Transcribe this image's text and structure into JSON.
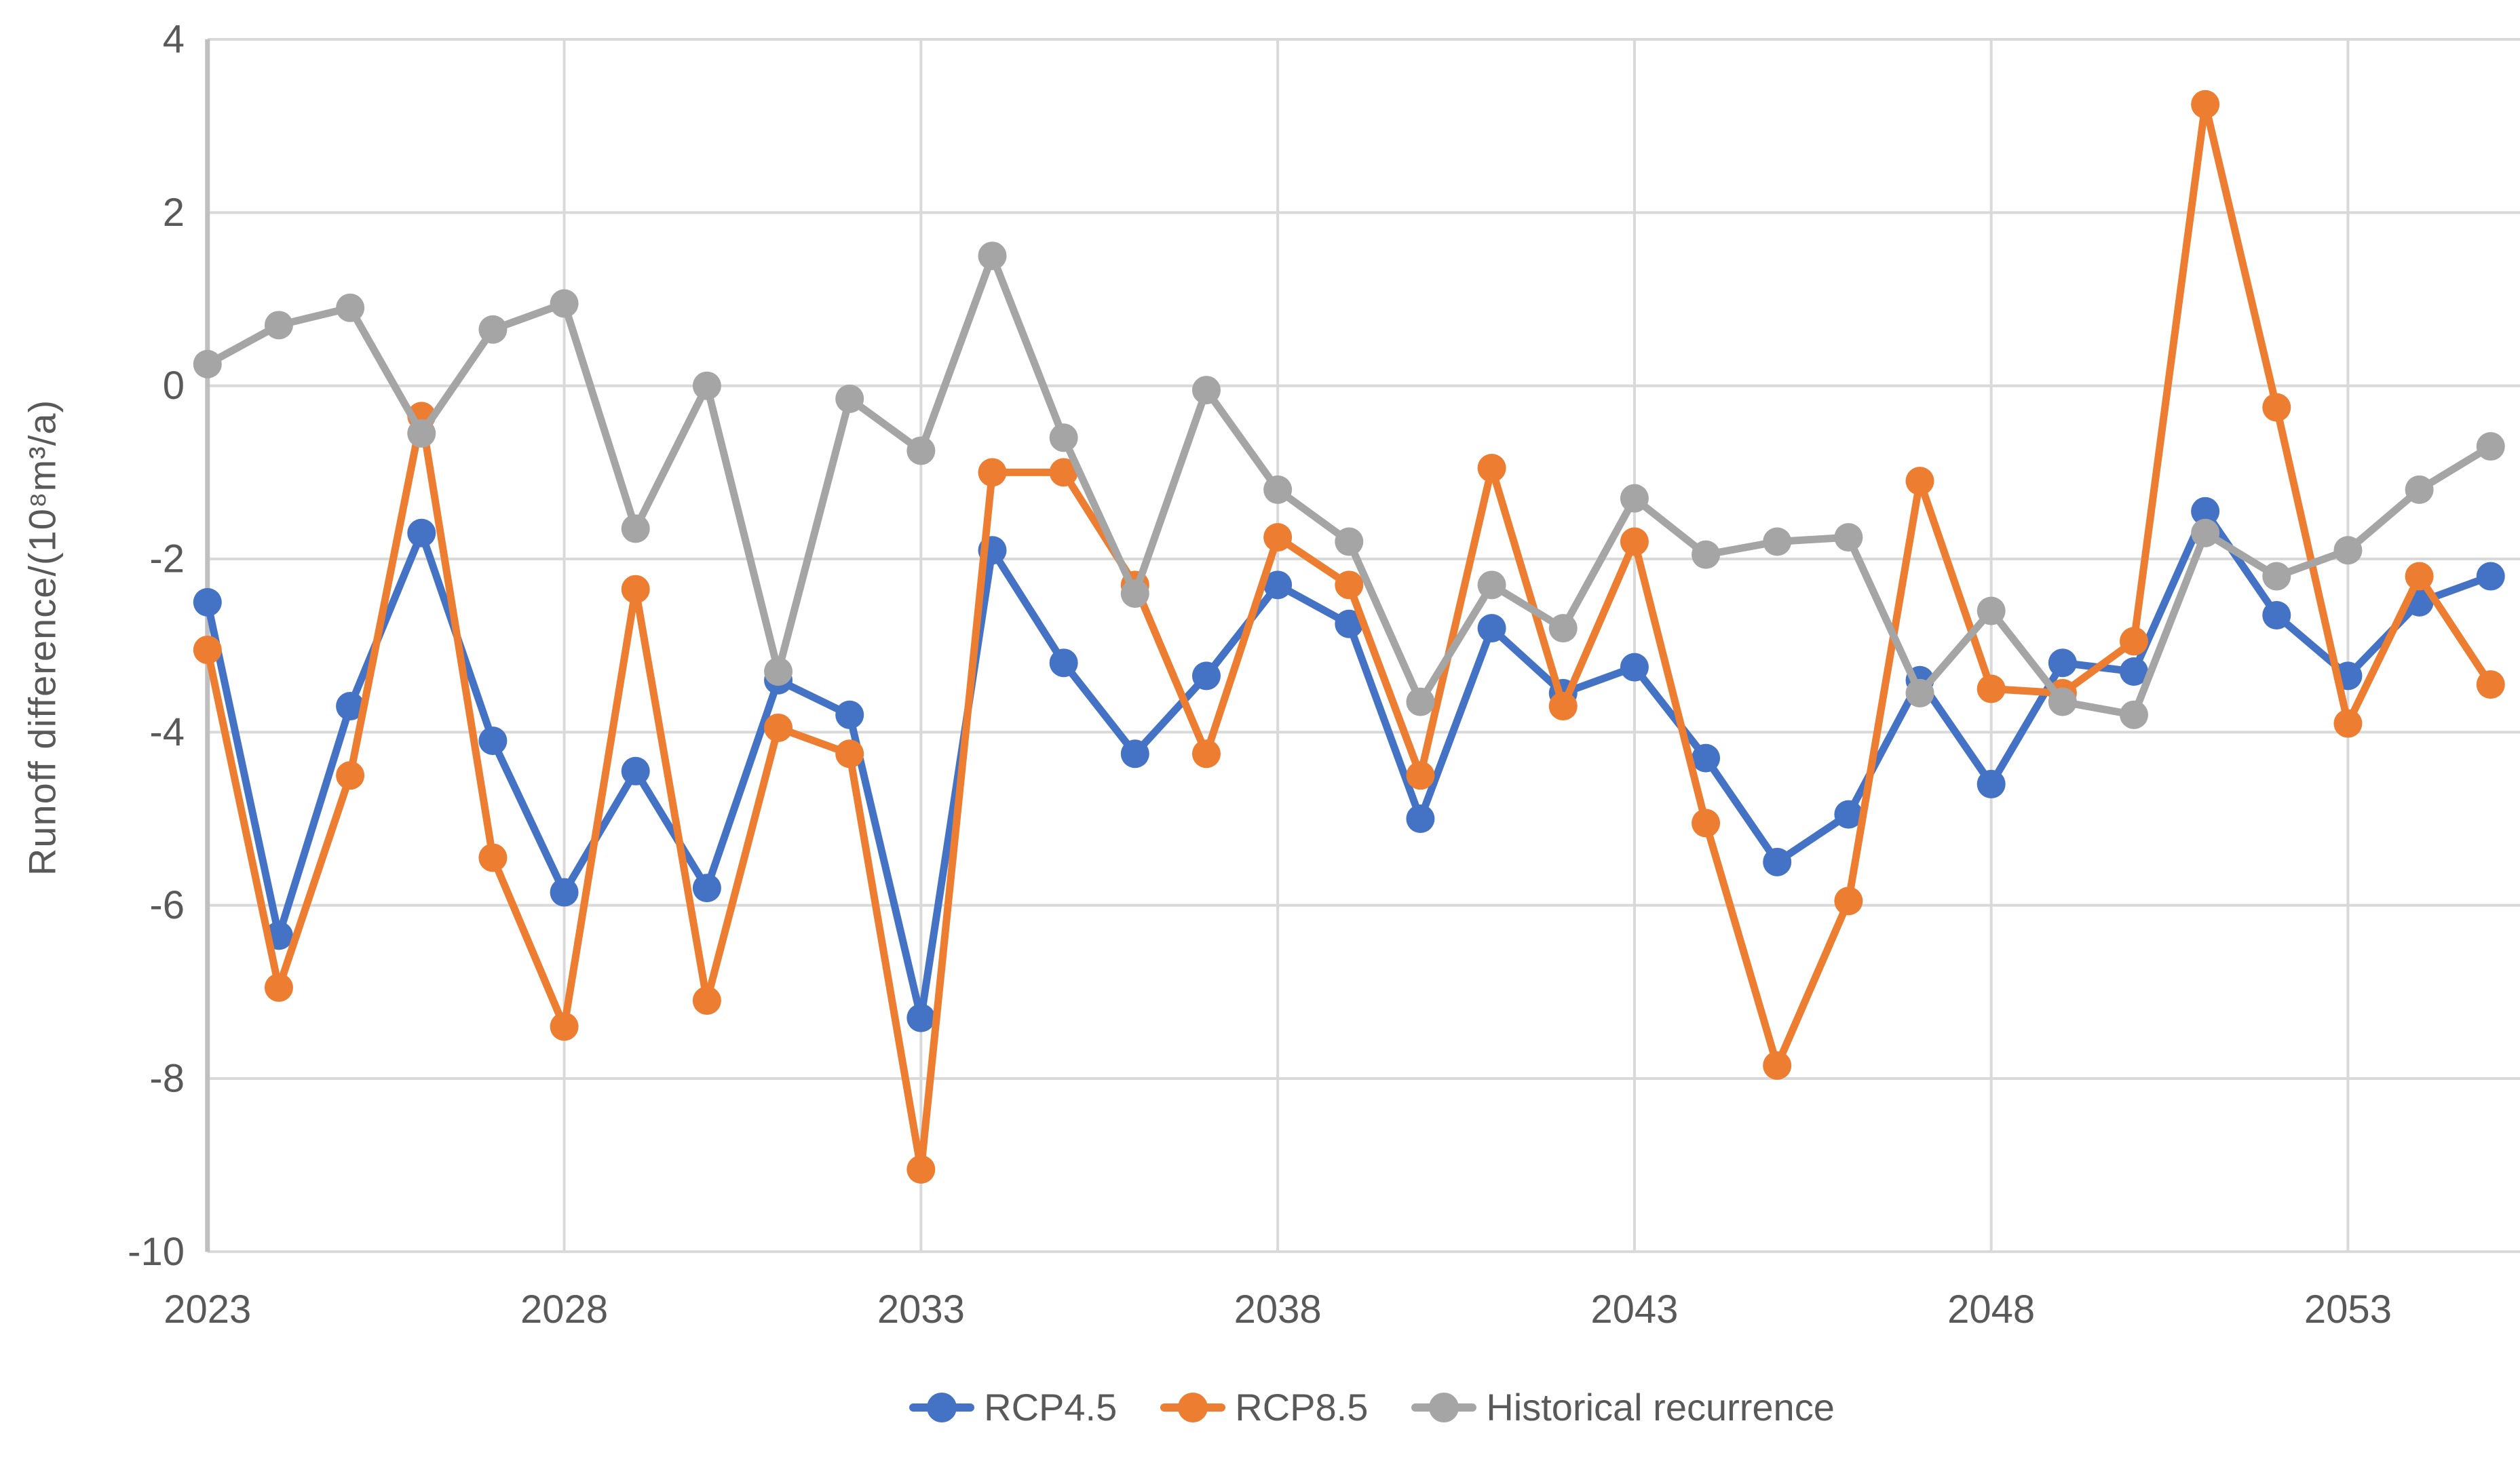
{
  "chart_data": {
    "type": "line",
    "title": "",
    "xlabel": "",
    "ylabel": "Runoff difference/(10⁸m³/a)",
    "years": [
      2023,
      2024,
      2025,
      2026,
      2027,
      2028,
      2029,
      2030,
      2031,
      2032,
      2033,
      2034,
      2035,
      2036,
      2037,
      2038,
      2039,
      2040,
      2041,
      2042,
      2043,
      2044,
      2045,
      2046,
      2047,
      2048,
      2049,
      2050,
      2051,
      2052,
      2053,
      2054,
      2055
    ],
    "x_tick_labels": [
      "2023",
      "2028",
      "2033",
      "2038",
      "2043",
      "2048",
      "2053"
    ],
    "x_tick_years": [
      2023,
      2028,
      2033,
      2038,
      2043,
      2048,
      2053
    ],
    "x_gridline_years": [
      2028,
      2033,
      2038,
      2043,
      2048,
      2053
    ],
    "y_ticks": [
      4,
      2,
      0,
      -2,
      -4,
      -6,
      -8,
      -10
    ],
    "ylim": [
      -10,
      4
    ],
    "xlim": [
      2023,
      2055
    ],
    "grid": true,
    "legend_position": "bottom",
    "series": [
      {
        "name": "RCP4.5",
        "color": "#4472C4",
        "values": [
          -2.5,
          -6.35,
          -3.7,
          -1.7,
          -4.1,
          -5.85,
          -4.45,
          -5.8,
          -3.4,
          -3.8,
          -7.3,
          -1.9,
          -3.2,
          -4.25,
          -3.35,
          -2.3,
          -2.75,
          -5.0,
          -2.8,
          -3.55,
          -3.25,
          -4.3,
          -5.5,
          -4.95,
          -3.4,
          -4.6,
          -3.2,
          -3.3,
          -1.45,
          -2.65,
          -3.35,
          -2.5,
          -2.2
        ]
      },
      {
        "name": "RCP8.5",
        "color": "#ED7D31",
        "values": [
          -3.05,
          -6.95,
          -4.5,
          -0.35,
          -5.45,
          -7.4,
          -2.35,
          -7.1,
          -3.95,
          -4.25,
          -9.05,
          -1.0,
          -1.0,
          -2.3,
          -4.25,
          -1.75,
          -2.3,
          -4.5,
          -0.95,
          -3.7,
          -1.8,
          -5.05,
          -7.85,
          -5.95,
          -1.1,
          -3.5,
          -3.55,
          -2.95,
          3.25,
          -0.25,
          -3.9,
          -2.2,
          -3.45
        ]
      },
      {
        "name": "Historical recurrence",
        "color": "#A5A5A5",
        "values": [
          0.25,
          0.7,
          0.9,
          -0.55,
          0.65,
          0.95,
          -1.65,
          0.0,
          -3.3,
          -0.15,
          -0.75,
          1.5,
          -0.6,
          -2.4,
          -0.05,
          -1.2,
          -1.8,
          -3.65,
          -2.3,
          -2.8,
          -1.3,
          -1.95,
          -1.8,
          -1.75,
          -3.55,
          -2.6,
          -3.65,
          -3.8,
          -1.7,
          -2.2,
          -1.9,
          -1.2,
          -0.7
        ]
      }
    ]
  },
  "colors": {
    "background": "#ffffff",
    "gridline": "#D9D9D9",
    "axis_line": "#BFBFBF",
    "tick_text": "#595959",
    "series_rcp45": "#4472C4",
    "series_rcp85": "#ED7D31",
    "series_historical": "#A5A5A5"
  }
}
